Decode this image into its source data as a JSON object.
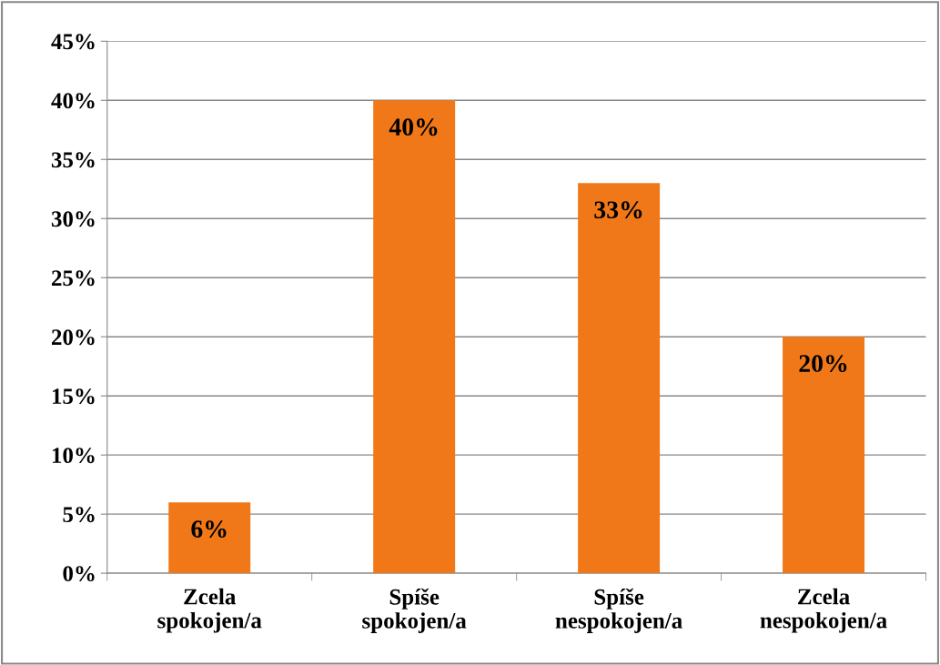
{
  "chart_data": {
    "type": "bar",
    "categories": [
      "Zcela\nspokojen/a",
      "Spíše\nspokojen/a",
      "Spíše\nnespokojen/a",
      "Zcela\nnespokojen/a"
    ],
    "values": [
      6,
      40,
      33,
      20
    ],
    "color": "#f07818",
    "value_labels": [
      "6%",
      "40%",
      "33%",
      "20%"
    ],
    "ylim": [
      0,
      45
    ],
    "yticks": [
      {
        "value": 0,
        "label": "0%"
      },
      {
        "value": 5,
        "label": "5%"
      },
      {
        "value": 10,
        "label": "10%"
      },
      {
        "value": 15,
        "label": "15%"
      },
      {
        "value": 20,
        "label": "20%"
      },
      {
        "value": 25,
        "label": "25%"
      },
      {
        "value": 30,
        "label": "30%"
      },
      {
        "value": 35,
        "label": "35%"
      },
      {
        "value": 40,
        "label": "40%"
      },
      {
        "value": 45,
        "label": "45%"
      }
    ],
    "grid": "y"
  }
}
